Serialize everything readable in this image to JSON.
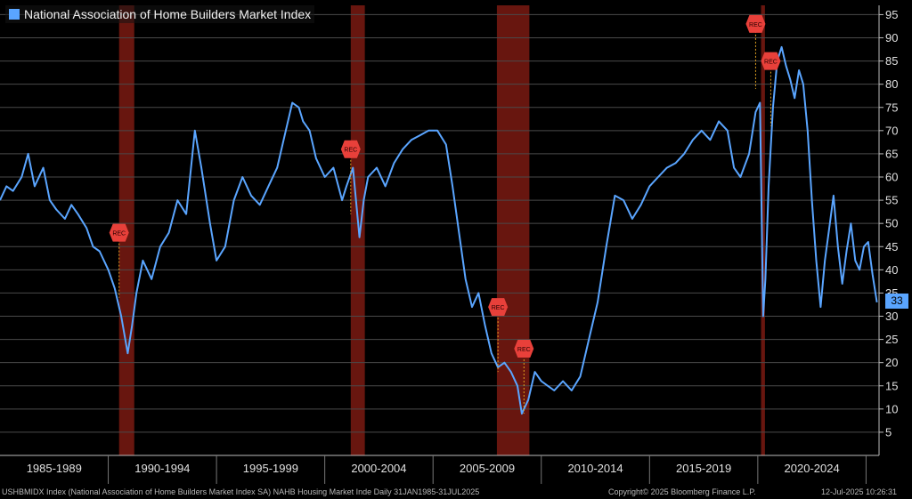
{
  "chart_data": {
    "type": "line",
    "title": "National Association of Home Builders Market Index",
    "xlabel": "",
    "ylabel": "",
    "ylim": [
      0,
      97
    ],
    "xlim": [
      1985.0,
      2025.6
    ],
    "y_ticks": [
      5,
      10,
      15,
      20,
      25,
      30,
      35,
      40,
      45,
      50,
      55,
      60,
      65,
      70,
      75,
      80,
      85,
      90,
      95
    ],
    "x_period_labels": [
      {
        "label": "1985-1989",
        "center": 1987.5
      },
      {
        "label": "1990-1994",
        "center": 1992.5
      },
      {
        "label": "1995-1999",
        "center": 1997.5
      },
      {
        "label": "2000-2004",
        "center": 2002.5
      },
      {
        "label": "2005-2009",
        "center": 2007.5
      },
      {
        "label": "2010-2014",
        "center": 2012.5
      },
      {
        "label": "2015-2019",
        "center": 2017.5
      },
      {
        "label": "2020-2024",
        "center": 2022.5
      }
    ],
    "period_dividers": [
      1990,
      1995,
      2000,
      2005,
      2010,
      2015,
      2020,
      2025
    ],
    "grid": true,
    "legend": "top-left",
    "colors": {
      "line": "#5aa5ff",
      "recession": "#7a1a12",
      "marker": "#e8403a",
      "grid": "#4a4a4a",
      "background": "#000000"
    },
    "recession_periods": [
      [
        1990.5,
        1991.2
      ],
      [
        2001.2,
        2001.85
      ],
      [
        2007.95,
        2009.45
      ],
      [
        2020.15,
        2020.33
      ]
    ],
    "series": [
      {
        "name": "National Association of Home Builders Market Index",
        "x": [
          1985.0,
          1985.3,
          1985.6,
          1986.0,
          1986.3,
          1986.6,
          1987.0,
          1987.3,
          1987.6,
          1988.0,
          1988.3,
          1988.6,
          1989.0,
          1989.3,
          1989.6,
          1990.0,
          1990.3,
          1990.6,
          1990.9,
          1991.1,
          1991.3,
          1991.6,
          1992.0,
          1992.4,
          1992.8,
          1993.2,
          1993.6,
          1994.0,
          1994.3,
          1994.7,
          1995.0,
          1995.4,
          1995.8,
          1996.2,
          1996.6,
          1997.0,
          1997.4,
          1997.8,
          1998.2,
          1998.5,
          1998.8,
          1999.0,
          1999.3,
          1999.6,
          2000.0,
          2000.4,
          2000.8,
          2001.0,
          2001.3,
          2001.6,
          2001.8,
          2002.0,
          2002.4,
          2002.8,
          2003.2,
          2003.6,
          2004.0,
          2004.4,
          2004.8,
          2005.2,
          2005.6,
          2005.9,
          2006.2,
          2006.5,
          2006.8,
          2007.1,
          2007.4,
          2007.7,
          2008.0,
          2008.3,
          2008.6,
          2008.9,
          2009.1,
          2009.4,
          2009.7,
          2010.0,
          2010.3,
          2010.6,
          2011.0,
          2011.4,
          2011.8,
          2012.2,
          2012.6,
          2013.0,
          2013.4,
          2013.8,
          2014.2,
          2014.6,
          2015.0,
          2015.4,
          2015.8,
          2016.2,
          2016.6,
          2017.0,
          2017.4,
          2017.8,
          2018.2,
          2018.6,
          2018.9,
          2019.2,
          2019.6,
          2019.9,
          2020.1,
          2020.25,
          2020.35,
          2020.5,
          2020.7,
          2020.9,
          2021.1,
          2021.3,
          2021.5,
          2021.7,
          2021.9,
          2022.1,
          2022.3,
          2022.5,
          2022.7,
          2022.9,
          2023.1,
          2023.3,
          2023.5,
          2023.7,
          2023.9,
          2024.1,
          2024.3,
          2024.5,
          2024.7,
          2024.9,
          2025.1,
          2025.3,
          2025.5
        ],
        "values": [
          55,
          58,
          57,
          60,
          65,
          58,
          62,
          55,
          53,
          51,
          54,
          52,
          49,
          45,
          44,
          40,
          36,
          30,
          22,
          28,
          35,
          42,
          38,
          45,
          48,
          55,
          52,
          70,
          62,
          50,
          42,
          45,
          55,
          60,
          56,
          54,
          58,
          62,
          70,
          76,
          75,
          72,
          70,
          64,
          60,
          62,
          55,
          58,
          62,
          47,
          55,
          60,
          62,
          58,
          63,
          66,
          68,
          69,
          70,
          70,
          67,
          58,
          48,
          38,
          32,
          35,
          28,
          22,
          19,
          20,
          18,
          15,
          9,
          12,
          18,
          16,
          15,
          14,
          16,
          14,
          17,
          25,
          33,
          45,
          56,
          55,
          51,
          54,
          58,
          60,
          62,
          63,
          65,
          68,
          70,
          68,
          72,
          70,
          62,
          60,
          65,
          74,
          76,
          30,
          38,
          58,
          75,
          85,
          88,
          84,
          81,
          77,
          83,
          80,
          70,
          55,
          42,
          32,
          42,
          49,
          56,
          45,
          37,
          44,
          50,
          42,
          40,
          45,
          46,
          39,
          33
        ]
      }
    ],
    "markers": [
      {
        "label": "REC",
        "x": 1990.5,
        "y": 48
      },
      {
        "label": "REC",
        "x": 2001.2,
        "y": 66
      },
      {
        "label": "REC",
        "x": 2008.0,
        "y": 32
      },
      {
        "label": "REC",
        "x": 2009.2,
        "y": 23
      },
      {
        "label": "REC",
        "x": 2019.9,
        "y": 93
      },
      {
        "label": "REC",
        "x": 2020.6,
        "y": 85
      }
    ],
    "last_value": 33
  },
  "footer": {
    "left": "USHBMIDX Index (National Association of Home Builders Market Index SA) NAHB Housing Market Inde  Daily 31JAN1985-31JUL2025",
    "middle": "Copyright© 2025 Bloomberg Finance L.P.",
    "right": "12-Jul-2025 10:26:31"
  }
}
